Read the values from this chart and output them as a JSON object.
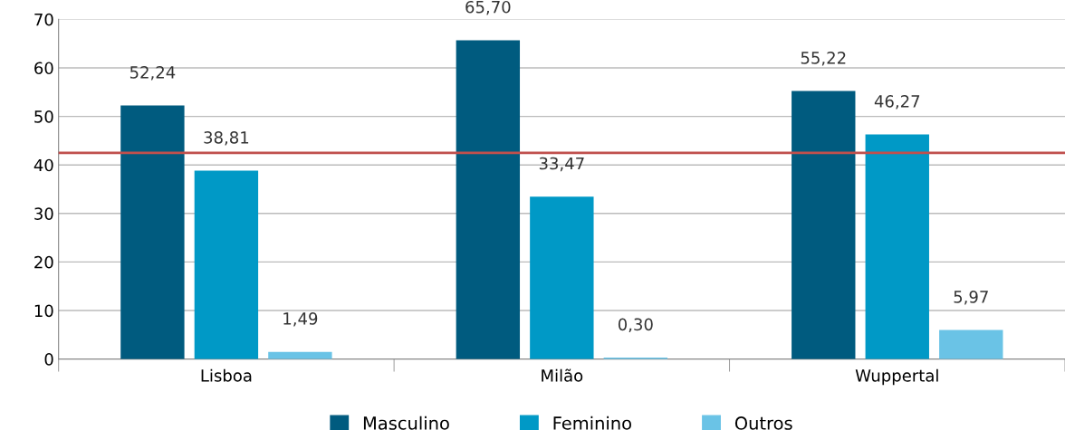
{
  "chart_data": {
    "type": "bar",
    "categories": [
      "Lisboa",
      "Milão",
      "Wuppertal"
    ],
    "series": [
      {
        "name": "Masculino",
        "color": "#005b7f",
        "values": [
          52.24,
          65.7,
          55.22
        ],
        "value_labels": [
          "52,24",
          "65,70",
          "55,22"
        ]
      },
      {
        "name": "Feminino",
        "color": "#0099c6",
        "values": [
          38.81,
          33.47,
          46.27
        ],
        "value_labels": [
          "38,81",
          "33,47",
          "46,27"
        ]
      },
      {
        "name": "Outros",
        "color": "#6ac3e6",
        "values": [
          1.49,
          0.3,
          5.97
        ],
        "value_labels": [
          "1,49",
          "0,30",
          "5,97"
        ]
      }
    ],
    "ylim": [
      0,
      70
    ],
    "yticks": [
      0,
      10,
      20,
      30,
      40,
      50,
      60,
      70
    ],
    "ref_lines": [
      {
        "axis": "y",
        "value": 42.5,
        "color": "#c0504d"
      }
    ],
    "grid": "y",
    "legend": "bottom"
  }
}
